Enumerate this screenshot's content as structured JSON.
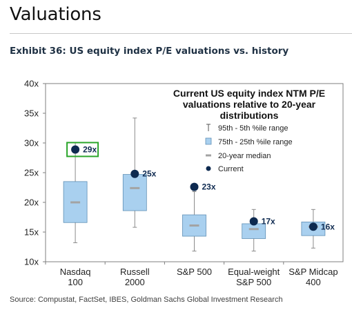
{
  "page": {
    "section_title": "Valuations",
    "exhibit_title": "Exhibit 36: US equity index P/E valuations vs. history",
    "source_note": "Source: Compustat, FactSet, IBES, Goldman Sachs Global Investment Research"
  },
  "chart_data": {
    "type": "box",
    "title": "Current US equity index NTM P/E valuations relative to 20-year distributions",
    "title_lines": [
      "Current US equity index NTM P/E",
      "valuations relative to 20-year",
      "distributions"
    ],
    "xlabel": "",
    "ylabel": "",
    "ylim": [
      10,
      40
    ],
    "yticks": [
      10,
      15,
      20,
      25,
      30,
      35,
      40
    ],
    "ytick_labels": [
      "10x",
      "15x",
      "20x",
      "25x",
      "30x",
      "35x",
      "40x"
    ],
    "grid": false,
    "legend_position": "top-right",
    "legend": {
      "whisker_label": "95th - 5th %ile range",
      "box_label": "75th - 25th %ile range",
      "median_label": "20-year median",
      "current_label": "Current"
    },
    "categories": [
      {
        "lines": [
          "Nasdaq",
          "100"
        ]
      },
      {
        "lines": [
          "Russell",
          "2000"
        ]
      },
      {
        "lines": [
          "S&P 500"
        ]
      },
      {
        "lines": [
          "Equal-weight",
          "S&P 500"
        ]
      },
      {
        "lines": [
          "S&P Midcap",
          "400"
        ]
      }
    ],
    "series": [
      {
        "p5": 13.2,
        "p25": 16.6,
        "median": 20.0,
        "p75": 23.5,
        "p95": 30.0,
        "current": 28.9,
        "current_label": "29x",
        "highlighted": true
      },
      {
        "p5": 15.8,
        "p25": 18.6,
        "median": 22.4,
        "p75": 24.7,
        "p95": 34.2,
        "current": 24.8,
        "current_label": "25x",
        "highlighted": false
      },
      {
        "p5": 11.8,
        "p25": 14.3,
        "median": 16.1,
        "p75": 17.9,
        "p95": 21.8,
        "current": 22.6,
        "current_label": "23x",
        "highlighted": false
      },
      {
        "p5": 11.8,
        "p25": 13.9,
        "median": 15.5,
        "p75": 16.4,
        "p95": 18.8,
        "current": 16.8,
        "current_label": "17x",
        "highlighted": false
      },
      {
        "p5": 12.3,
        "p25": 14.4,
        "median": 15.9,
        "p75": 16.7,
        "p95": 18.8,
        "current": 15.9,
        "current_label": "16x",
        "highlighted": false
      }
    ],
    "colors": {
      "box_fill": "#a9d0ef",
      "box_stroke": "#5f8fb5",
      "whisker": "#8a8a8a",
      "median": "#a3a3a3",
      "current_dot": "#0e2a50",
      "current_label": "#0e2a50",
      "highlight_border": "#2aa52a",
      "axis": "#7f7f7f",
      "text": "#222222"
    }
  }
}
